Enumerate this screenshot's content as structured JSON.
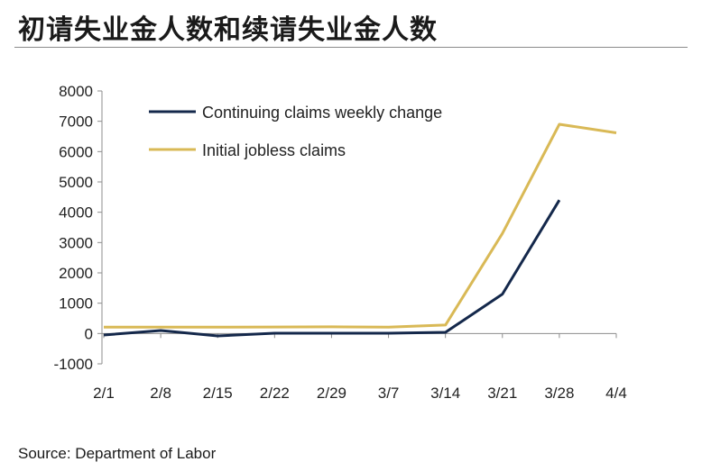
{
  "title": "初请失业金人数和续请失业金人数",
  "source": "Source: Department of Labor",
  "chart_data": {
    "type": "line",
    "categories": [
      "2/1",
      "2/8",
      "2/15",
      "2/22",
      "2/29",
      "3/7",
      "3/14",
      "3/21",
      "3/28",
      "4/4"
    ],
    "ylim": [
      -1000,
      8000
    ],
    "yticks": [
      -1000,
      0,
      1000,
      2000,
      3000,
      4000,
      5000,
      6000,
      7000,
      8000
    ],
    "grid": false,
    "legend_position": "top-left",
    "series": [
      {
        "name": "Continuing claims weekly change",
        "color": "#14284b",
        "values": [
          -50,
          100,
          -80,
          10,
          10,
          10,
          40,
          1300,
          4400,
          null
        ]
      },
      {
        "name": "Initial jobless claims",
        "color": "#d9b956",
        "values": [
          210,
          210,
          210,
          215,
          220,
          210,
          280,
          3300,
          6900,
          6620
        ]
      }
    ]
  }
}
